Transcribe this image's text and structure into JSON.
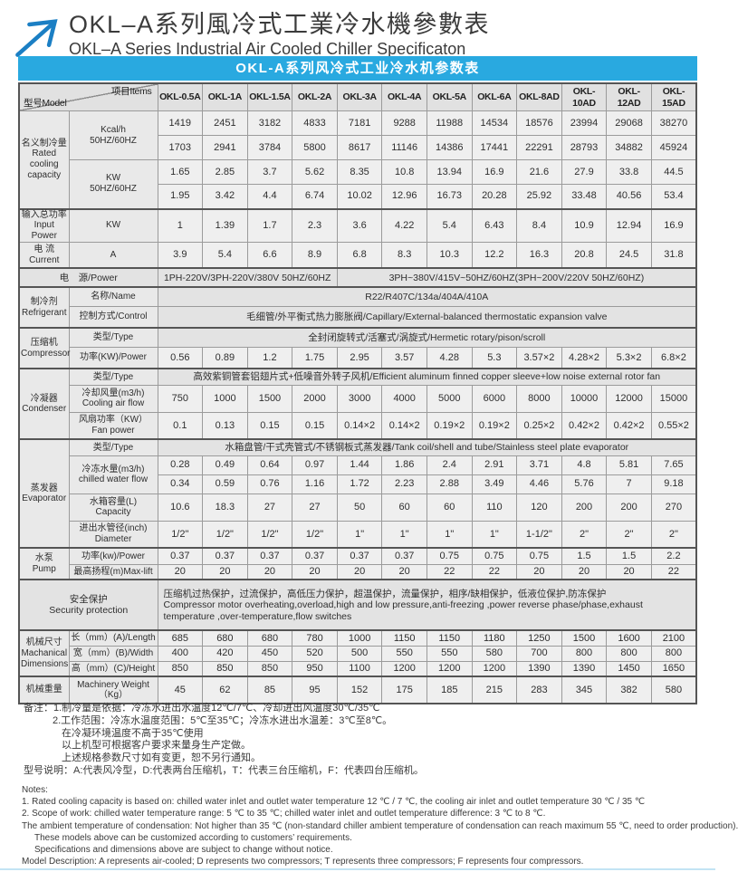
{
  "colors": {
    "accent": "#29a9e0",
    "arrow": "#1b7fc4"
  },
  "header": {
    "title_zh": "OKL–A系列風冷式工業冷水機參數表",
    "title_en": "OKL–A Series Industrial Air Cooled Chiller Specificaton"
  },
  "table_title": "OKL-A系列风冷式工业冷水机参数表",
  "table": {
    "corner": {
      "bottom_left": "型号Model",
      "top_right": "项目Items"
    },
    "models": [
      "OKL-0.5A",
      "OKL-1A",
      "OKL-1.5A",
      "OKL-2A",
      "OKL-3A",
      "OKL-4A",
      "OKL-5A",
      "OKL-6A",
      "OKL-8AD",
      "OKL-10AD",
      "OKL-12AD",
      "OKL-15AD"
    ],
    "rows": [
      {
        "h": 27,
        "cells": [
          {
            "t": "名义制冷量\nRated\ncooling\ncapacity",
            "r": 4,
            "k": "g"
          },
          {
            "t": "Kcal/h\n50HZ/60HZ",
            "r": 2,
            "k": "i"
          },
          1419,
          2451,
          3182,
          4833,
          7181,
          9288,
          11988,
          14534,
          18576,
          23994,
          29068,
          38270
        ]
      },
      {
        "h": 27,
        "cells": [
          1703,
          2941,
          3784,
          5800,
          8617,
          11146,
          14386,
          17441,
          22291,
          28793,
          34882,
          45924
        ]
      },
      {
        "h": 27,
        "cells": [
          {
            "t": "KW\n50HZ/60HZ",
            "r": 2,
            "k": "i"
          },
          1.65,
          2.85,
          3.7,
          5.62,
          8.35,
          10.8,
          13.94,
          16.9,
          21.6,
          27.9,
          33.8,
          44.5
        ]
      },
      {
        "h": 27,
        "cells": [
          1.95,
          3.42,
          4.4,
          6.74,
          10.02,
          12.96,
          16.73,
          20.28,
          25.92,
          33.48,
          40.56,
          53.4
        ]
      },
      {
        "h": 27,
        "gt": true,
        "cells": [
          {
            "t": "输入总功率\nInput Power",
            "k": "g"
          },
          {
            "t": "KW",
            "k": "i"
          },
          1,
          1.39,
          1.7,
          2.3,
          3.6,
          4.22,
          5.4,
          6.43,
          8.4,
          10.9,
          12.94,
          16.9
        ]
      },
      {
        "h": 29,
        "cells": [
          {
            "t": "电 流\nCurrent",
            "k": "g"
          },
          {
            "t": "A",
            "k": "i"
          },
          3.9,
          5.4,
          6.6,
          8.9,
          6.8,
          8.3,
          10.3,
          12.2,
          16.3,
          20.8,
          24.5,
          31.8
        ]
      },
      {
        "h": 21,
        "gt": true,
        "cells": [
          {
            "t": "电　源/Power",
            "c": 2,
            "k": "s"
          },
          {
            "t": "1PH-220V/3PH-220V/380V 50HZ/60HZ",
            "c": 4,
            "k": "s"
          },
          {
            "t": "3PH~380V/415V~50HZ/60HZ(3PH~200V/220V  50HZ/60HZ)",
            "c": 8,
            "k": "s"
          }
        ]
      },
      {
        "h": 21,
        "gt": true,
        "cells": [
          {
            "t": "制冷剂\nRefrigerant",
            "r": 2,
            "k": "g"
          },
          {
            "t": "名称/Name",
            "k": "i"
          },
          {
            "t": "R22/R407C/134a/404A/410A",
            "c": 12,
            "k": "s"
          }
        ]
      },
      {
        "h": 24,
        "cells": [
          {
            "t": "控制方式/Control",
            "k": "i"
          },
          {
            "t": "毛细管/外平衡式热力膨胀阀/Capillary/External-balanced thermostatic expansion valve",
            "c": 12,
            "k": "s"
          }
        ]
      },
      {
        "h": 21,
        "gt": true,
        "cells": [
          {
            "t": "压缩机\nCompressor",
            "r": 2,
            "k": "g"
          },
          {
            "t": "类型/Type",
            "k": "i"
          },
          {
            "t": "全封闭旋转式/活塞式/涡旋式/Hermetic rotary/pison/scroll",
            "c": 12,
            "k": "s"
          }
        ]
      },
      {
        "h": 24,
        "cells": [
          {
            "t": "功率(KW)/Power",
            "k": "i"
          },
          0.56,
          0.89,
          1.2,
          1.75,
          2.95,
          3.57,
          4.28,
          5.3,
          "3.57×2",
          "4.28×2",
          "5.3×2",
          "6.8×2"
        ]
      },
      {
        "h": 18,
        "gt": true,
        "cells": [
          {
            "t": "冷凝器\nCondenser",
            "r": 3,
            "k": "g"
          },
          {
            "t": "类型/Type",
            "k": "i"
          },
          {
            "t": "高效紫铜管套铝翅片式+低噪音外转子风机/Efficient aluminum finned copper sleeve+low noise external rotor fan",
            "c": 12,
            "k": "s"
          }
        ]
      },
      {
        "h": 30,
        "cells": [
          {
            "t": "冷却风量(m3/h)\nCooling air flow",
            "k": "i"
          },
          750,
          1000,
          1500,
          2000,
          3000,
          4000,
          5000,
          6000,
          8000,
          10000,
          12000,
          15000
        ]
      },
      {
        "h": 30,
        "cells": [
          {
            "t": "风扇功率（KW）\nFan power",
            "k": "i"
          },
          0.1,
          0.13,
          0.15,
          0.15,
          "0.14×2",
          "0.14×2",
          "0.19×2",
          "0.19×2",
          "0.25×2",
          "0.42×2",
          "0.42×2",
          "0.55×2"
        ]
      },
      {
        "h": 18,
        "gt": true,
        "cells": [
          {
            "t": "蒸发器\nEvaporator",
            "r": 5,
            "k": "g"
          },
          {
            "t": "类型/Type",
            "k": "i"
          },
          {
            "t": "水箱盘管/干式壳管式/不锈钢板式蒸发器/Tank coil/shell and tube/Stainless steel plate evaporator",
            "c": 12,
            "k": "s"
          }
        ]
      },
      {
        "h": 21,
        "cells": [
          {
            "t": "冷冻水量(m3/h)\nchilled water flow",
            "r": 2,
            "k": "i"
          },
          0.28,
          0.49,
          0.64,
          0.97,
          1.44,
          1.86,
          2.4,
          2.91,
          3.71,
          4.8,
          5.81,
          7.65
        ]
      },
      {
        "h": 21,
        "cells": [
          0.34,
          0.59,
          0.76,
          1.16,
          1.72,
          2.23,
          2.88,
          3.49,
          4.46,
          5.76,
          7,
          9.18
        ]
      },
      {
        "h": 30,
        "cells": [
          {
            "t": "水箱容量(L)\nCapacity",
            "k": "i"
          },
          10.6,
          18.3,
          27,
          27,
          50,
          60,
          60,
          110,
          120,
          200,
          200,
          270
        ]
      },
      {
        "h": 30,
        "cells": [
          {
            "t": "进出水管径(inch)\nDiameter",
            "k": "i"
          },
          "1/2\"",
          "1/2\"",
          "1/2\"",
          "1/2\"",
          "1\"",
          "1\"",
          "1\"",
          "1\"",
          "1-1/2\"",
          "2\"",
          "2\"",
          "2\""
        ]
      },
      {
        "h": 18,
        "gt": true,
        "cells": [
          {
            "t": "水泵\nPump",
            "r": 2,
            "k": "g"
          },
          {
            "t": "功率(kw)/Power",
            "k": "i"
          },
          0.37,
          0.37,
          0.37,
          0.37,
          0.37,
          0.37,
          0.75,
          0.75,
          0.75,
          1.5,
          1.5,
          2.2
        ]
      },
      {
        "h": 17,
        "cells": [
          {
            "t": "最高扬程(m)Max-lift",
            "k": "i"
          },
          20,
          20,
          20,
          20,
          20,
          20,
          22,
          22,
          20,
          20,
          20,
          22
        ]
      },
      {
        "h": 56,
        "gt": true,
        "cells": [
          {
            "t": "安全保护\nSecurity protection",
            "c": 2,
            "k": "s"
          },
          {
            "t": "压缩机过热保护，过流保护，高低压力保护，超温保护，流量保护，相序/缺相保护，低液位保护,防冻保护\nCompressor motor overheating,overload,high and low pressure,anti-freezing ,power reverse phase/phase,exhaust temperature ,over-temperature,flow switches",
            "c": 12,
            "k": "sl"
          }
        ]
      },
      {
        "h": 17,
        "gt": true,
        "cells": [
          {
            "t": "机械尺寸\nMachanical\nDimensions",
            "r": 3,
            "k": "g"
          },
          {
            "t": "长（mm）(A)/Length",
            "k": "i"
          },
          685,
          680,
          680,
          780,
          1000,
          1150,
          1150,
          1180,
          1250,
          1500,
          1600,
          2100
        ]
      },
      {
        "h": 17,
        "cells": [
          {
            "t": "宽（mm）(B)/Width",
            "k": "i"
          },
          400,
          420,
          450,
          520,
          500,
          550,
          550,
          580,
          700,
          800,
          800,
          800
        ]
      },
      {
        "h": 17,
        "cells": [
          {
            "t": "高（mm）(C)/Height",
            "k": "i"
          },
          850,
          850,
          850,
          950,
          1100,
          1200,
          1200,
          1200,
          1390,
          1390,
          1450,
          1650
        ]
      },
      {
        "h": 30,
        "gt": true,
        "cells": [
          {
            "t": "机械重量",
            "k": "g"
          },
          {
            "t": "Machinery Weight\n（Kg）",
            "k": "i"
          },
          45,
          62,
          85,
          95,
          152,
          175,
          185,
          215,
          283,
          345,
          382,
          580
        ]
      }
    ]
  },
  "notes_zh": [
    {
      "t": "备注：1.制冷量是依据：冷冻水进出水温度12℃/7℃、冷却进出风温度30℃/35℃",
      "ind": 0
    },
    {
      "t": "2.工作范围：冷冻水温度范围：5℃至35℃；冷冻水进出水温差：3℃至8℃。",
      "ind": 32
    },
    {
      "t": "在冷凝环境温度不高于35℃使用",
      "ind": 42
    },
    {
      "t": "以上机型可根据客户要求来量身生产定做。",
      "ind": 42
    },
    {
      "t": "上述规格参数尺寸如有变更，恕不另行通知。",
      "ind": 42
    },
    {
      "t": "型号说明：A:代表风冷型，D:代表两台压缩机，T：代表三台压缩机，F：代表四台压缩机。",
      "ind": 0
    }
  ],
  "notes_en": [
    {
      "t": "Notes:",
      "ind": 0
    },
    {
      "t": "1. Rated cooling capacity is based on: chilled water inlet and outlet water temperature 12 ℃ / 7 ℃, the cooling air inlet and outlet temperature 30 ℃ / 35 ℃",
      "ind": 0
    },
    {
      "t": "2. Scope of work: chilled water temperature range: 5 ℃ to 35 ℃; chilled water inlet and outlet temperature difference: 3 ℃ to 8 ℃.",
      "ind": 0
    },
    {
      "t": "The ambient temperature of condensation: Not higher than 35 ℃ (non-standard chiller ambient temperature of condensation can reach maximum 55 ℃, need to order production).",
      "ind": 0
    },
    {
      "t": "These models above can be customized according to customers’  requirements.",
      "ind": 14
    },
    {
      "t": "Specifications and dimensions above are subject to change without notice.",
      "ind": 14
    },
    {
      "t": "Model Description: A represents air-cooled; D represents two compressors; T represents three compressors; F represents four compressors.",
      "ind": 0
    }
  ]
}
